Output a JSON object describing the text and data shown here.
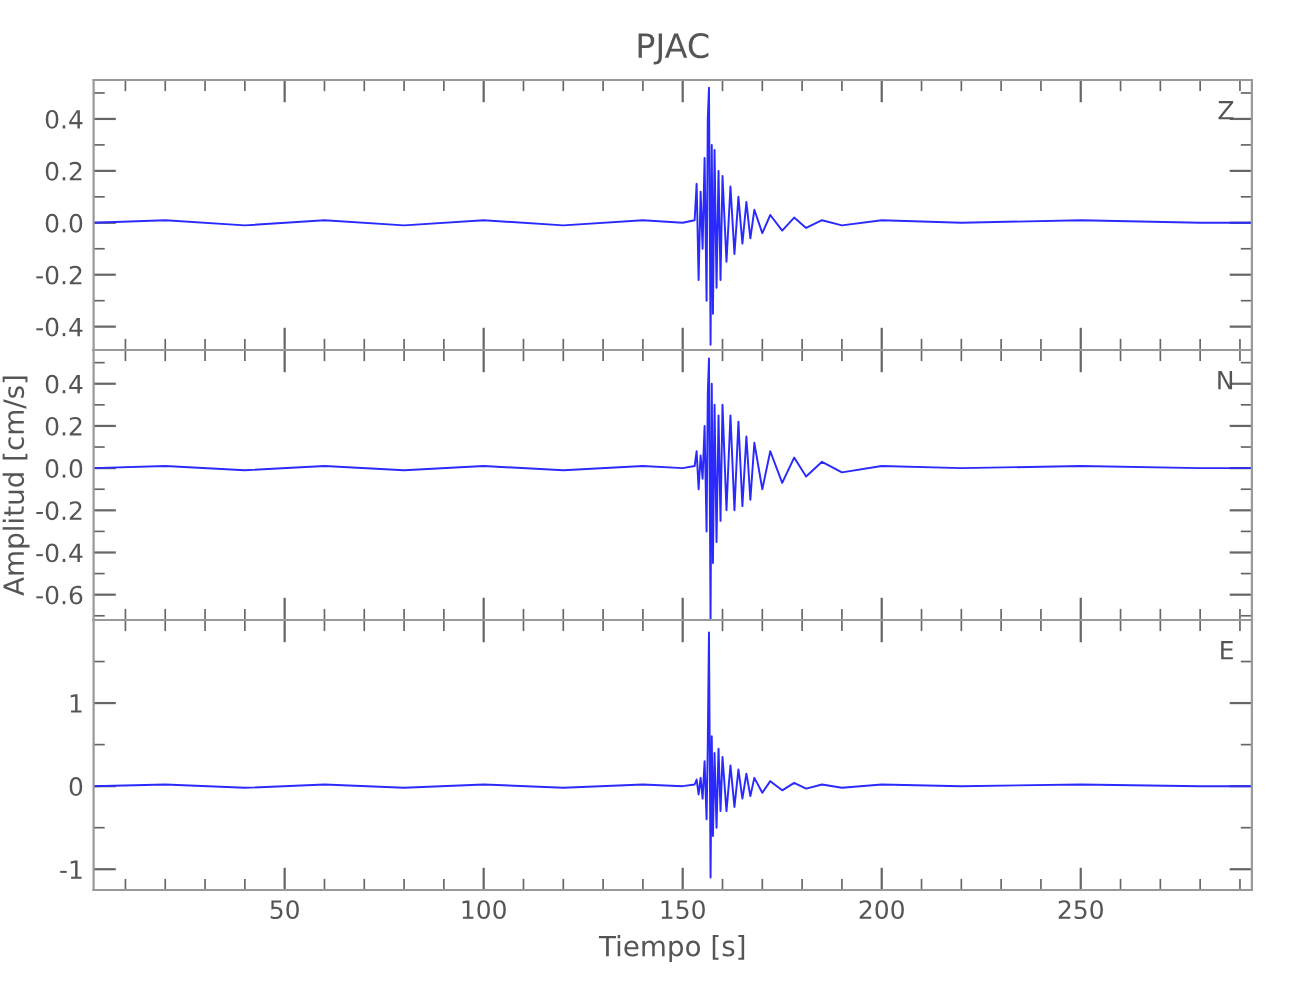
{
  "chart_data": [
    {
      "type": "line",
      "title": "PJAC",
      "annotations": [
        "Z"
      ],
      "tick_labels": "y",
      "grid": false,
      "x": [
        2,
        20,
        40,
        60,
        80,
        100,
        120,
        140,
        150,
        153,
        153.5,
        154,
        154.5,
        155,
        155.5,
        156,
        156.3,
        156.6,
        157,
        157.3,
        157.6,
        158,
        158.5,
        159,
        159.5,
        160,
        161,
        162,
        163,
        164,
        165,
        166,
        167,
        168,
        170,
        172,
        175,
        178,
        181,
        185,
        190,
        200,
        220,
        250,
        280,
        293
      ],
      "series": [
        {
          "color": "#2a2aff",
          "values": [
            0,
            0.01,
            -0.01,
            0.01,
            -0.01,
            0.01,
            -0.01,
            0.01,
            0,
            0.01,
            0.15,
            -0.22,
            0.12,
            -0.1,
            0.25,
            -0.3,
            0.4,
            0.52,
            -0.47,
            0.3,
            -0.35,
            0.28,
            -0.25,
            0.2,
            -0.22,
            0.18,
            -0.15,
            0.14,
            -0.12,
            0.1,
            -0.08,
            0.08,
            -0.06,
            0.05,
            -0.04,
            0.03,
            -0.03,
            0.02,
            -0.02,
            0.01,
            -0.01,
            0.01,
            0,
            0.01,
            0,
            0
          ]
        }
      ],
      "xlim": [
        2,
        293
      ],
      "xticks": [
        50,
        100,
        150,
        200,
        250
      ],
      "ylim": [
        -0.49,
        0.55
      ],
      "yticks": [
        -0.4,
        -0.2,
        {
          "value": 0,
          "label": "0.0"
        },
        0.2,
        0.4
      ]
    },
    {
      "type": "line",
      "ylabel": "Amplitud [cm/s]",
      "annotations": [
        "N"
      ],
      "tick_labels": "y",
      "grid": false,
      "x": [
        2,
        20,
        40,
        60,
        80,
        100,
        120,
        140,
        150,
        153,
        153.5,
        154,
        154.5,
        155,
        155.5,
        156,
        156.3,
        156.6,
        157,
        157.3,
        157.6,
        158,
        158.5,
        159,
        159.5,
        160,
        161,
        162,
        163,
        164,
        165,
        166,
        167,
        168,
        170,
        172,
        175,
        178,
        181,
        185,
        190,
        200,
        220,
        250,
        280,
        293
      ],
      "series": [
        {
          "color": "#2a2aff",
          "values": [
            0,
            0.01,
            -0.01,
            0.01,
            -0.01,
            0.01,
            -0.01,
            0.01,
            0,
            0.01,
            0.08,
            -0.1,
            0.06,
            -0.05,
            0.2,
            -0.3,
            0.35,
            0.52,
            -0.72,
            0.4,
            -0.45,
            0.3,
            -0.35,
            0.25,
            -0.25,
            0.3,
            -0.2,
            0.25,
            -0.2,
            0.22,
            -0.18,
            0.15,
            -0.15,
            0.12,
            -0.1,
            0.08,
            -0.07,
            0.05,
            -0.04,
            0.03,
            -0.02,
            0.01,
            0,
            0.01,
            0,
            0
          ]
        }
      ],
      "xlim": [
        2,
        293
      ],
      "xticks": [
        50,
        100,
        150,
        200,
        250
      ],
      "ylim": [
        -0.72,
        0.56
      ],
      "yticks": [
        -0.6,
        -0.4,
        -0.2,
        {
          "value": 0,
          "label": "0.0"
        },
        0.2,
        0.4
      ]
    },
    {
      "type": "line",
      "xlabel": "Tiempo [s]",
      "annotations": [
        "E"
      ],
      "grid": false,
      "x": [
        2,
        20,
        40,
        60,
        80,
        100,
        120,
        140,
        150,
        153,
        153.5,
        154,
        154.5,
        155,
        155.5,
        156,
        156.3,
        156.6,
        157,
        157.3,
        157.6,
        158,
        158.5,
        159,
        159.5,
        160,
        161,
        162,
        163,
        164,
        165,
        166,
        167,
        168,
        170,
        172,
        175,
        178,
        181,
        185,
        190,
        200,
        220,
        250,
        280,
        293
      ],
      "series": [
        {
          "color": "#2a2aff",
          "values": [
            0,
            0.02,
            -0.02,
            0.02,
            -0.02,
            0.02,
            -0.02,
            0.02,
            0,
            0.02,
            0.08,
            -0.1,
            0.1,
            -0.15,
            0.3,
            -0.4,
            0.5,
            1.85,
            -1.1,
            0.6,
            -0.6,
            0.4,
            -0.5,
            0.45,
            -0.3,
            0.35,
            -0.3,
            0.25,
            -0.25,
            0.2,
            -0.15,
            0.15,
            -0.12,
            0.1,
            -0.08,
            0.06,
            -0.05,
            0.04,
            -0.03,
            0.02,
            -0.02,
            0.02,
            0,
            0.02,
            0,
            0
          ]
        }
      ],
      "xlim": [
        2,
        293
      ],
      "xticks": [
        50,
        100,
        150,
        200,
        250
      ],
      "ylim": [
        -1.25,
        2.0
      ],
      "yticks": [
        -1,
        0,
        1
      ]
    }
  ]
}
